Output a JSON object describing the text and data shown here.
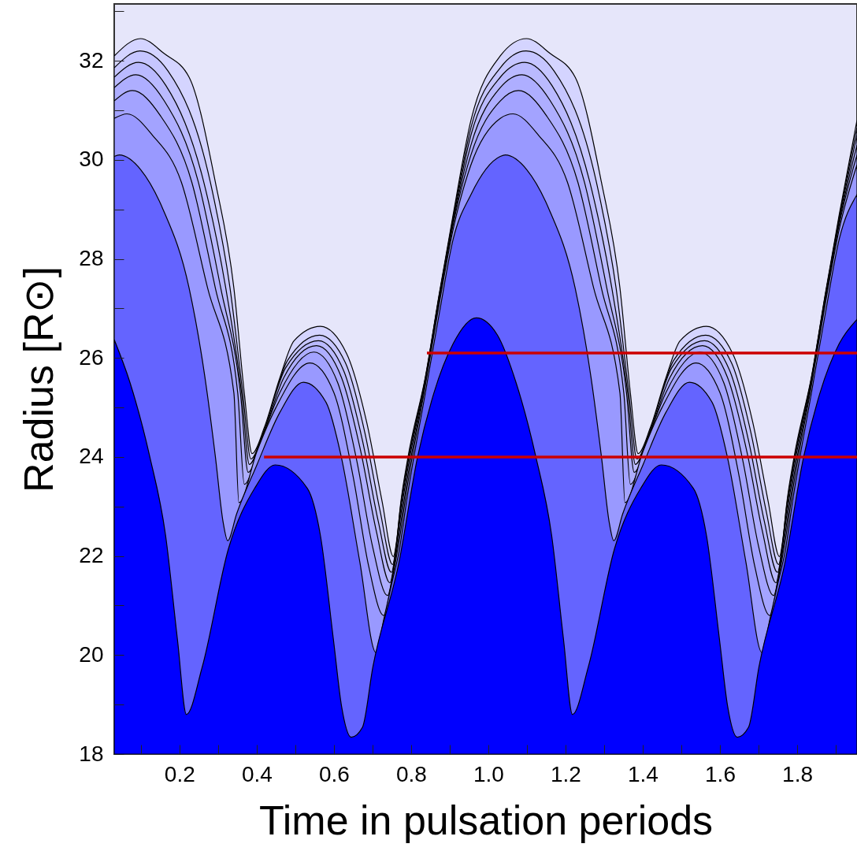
{
  "chart_data": {
    "type": "area",
    "xlabel": "Time in pulsation periods",
    "ylabel": "Radius [R⊙]",
    "xlim": [
      0.031,
      1.955
    ],
    "ylim": [
      18,
      33.15
    ],
    "xticks": [
      {
        "value": 0.1,
        "label": null
      },
      0.2,
      {
        "value": 0.3,
        "label": null
      },
      0.4,
      {
        "value": 0.5,
        "label": null
      },
      0.6,
      {
        "value": 0.7,
        "label": null
      },
      0.8,
      {
        "value": 0.9,
        "label": null
      },
      {
        "value": 1,
        "label": "1.0"
      },
      {
        "value": 1.1,
        "label": null
      },
      1.2,
      {
        "value": 1.3,
        "label": null
      },
      1.4,
      {
        "value": 1.5,
        "label": null
      },
      1.6,
      {
        "value": 1.7,
        "label": null
      },
      1.8,
      {
        "value": 1.9,
        "label": null
      }
    ],
    "yticks": [
      18,
      {
        "value": 19,
        "label": null
      },
      20,
      {
        "value": 21,
        "label": null
      },
      22,
      {
        "value": 23,
        "label": null
      },
      24,
      {
        "value": 25,
        "label": null
      },
      26,
      {
        "value": 27,
        "label": null
      },
      28,
      {
        "value": 29,
        "label": null
      },
      30,
      {
        "value": 31,
        "label": null
      },
      32,
      {
        "value": 33,
        "label": null
      }
    ],
    "series": [
      {
        "color": "#0000ff",
        "x": [
          0.031,
          0.072,
          0.123,
          0.164,
          0.195,
          0.218,
          0.259,
          0.327,
          0.395,
          0.448,
          0.531,
          0.565,
          0.599,
          0.62,
          0.645,
          0.674,
          0.701,
          0.769,
          0.817,
          0.859,
          0.909,
          0.969,
          1.023,
          1.072,
          1.123,
          1.164,
          1.195,
          1.218,
          1.259,
          1.327,
          1.395,
          1.448,
          1.531,
          1.565,
          1.599,
          1.62,
          1.645,
          1.674,
          1.701,
          1.769,
          1.817,
          1.859,
          1.909,
          1.955
        ],
        "values": [
          26.37,
          25.5,
          24.01,
          22.42,
          20.3,
          18.8,
          19.76,
          22.15,
          23.37,
          23.84,
          23.37,
          22.42,
          20.3,
          18.96,
          18.34,
          18.54,
          19.76,
          21.89,
          24.01,
          25.29,
          26.29,
          26.81,
          26.47,
          25.5,
          24.01,
          22.42,
          20.3,
          18.8,
          19.76,
          22.15,
          23.37,
          23.84,
          23.37,
          22.42,
          20.3,
          18.96,
          18.34,
          18.54,
          19.76,
          21.89,
          24.01,
          25.29,
          26.29,
          26.78
        ]
      },
      {
        "color": "#6464ff",
        "x": [
          0.031,
          0.044,
          0.1,
          0.157,
          0.225,
          0.266,
          0.293,
          0.313,
          0.325,
          0.348,
          0.401,
          0.46,
          0.521,
          0.58,
          0.619,
          0.667,
          0.709,
          0.73,
          0.75,
          0.769,
          0.79,
          0.837,
          0.873,
          0.909,
          0.955,
          1.031,
          1.044,
          1.1,
          1.157,
          1.225,
          1.266,
          1.293,
          1.313,
          1.325,
          1.348,
          1.401,
          1.46,
          1.521,
          1.58,
          1.619,
          1.667,
          1.709,
          1.73,
          1.75,
          1.769,
          1.79,
          1.837,
          1.873,
          1.909,
          1.955
        ],
        "values": [
          30.07,
          30.1,
          29.8,
          29.01,
          27.41,
          25.61,
          24.01,
          22.69,
          22.31,
          22.85,
          23.85,
          24.9,
          25.51,
          25.1,
          24.01,
          21.89,
          20.05,
          20.75,
          21.45,
          22.1,
          23.2,
          25.3,
          26.9,
          28.4,
          29.3,
          30.07,
          30.1,
          29.8,
          29.01,
          27.41,
          25.61,
          24.01,
          22.69,
          22.31,
          22.85,
          23.85,
          24.9,
          25.51,
          25.1,
          24.01,
          21.89,
          20.05,
          20.75,
          21.45,
          22.1,
          23.2,
          25.3,
          26.9,
          28.4,
          29.3
        ]
      },
      {
        "color": "#9999ff",
        "x": [
          0.031,
          0.064,
          0.13,
          0.205,
          0.273,
          0.341,
          0.354,
          0.4,
          0.45,
          0.538,
          0.6,
          0.65,
          0.69,
          0.729,
          0.75,
          0.769,
          0.79,
          0.837,
          0.873,
          0.909,
          0.955,
          1.031,
          1.064,
          1.13,
          1.205,
          1.273,
          1.341,
          1.354,
          1.4,
          1.45,
          1.538,
          1.6,
          1.65,
          1.69,
          1.729,
          1.75,
          1.769,
          1.79,
          1.837,
          1.873,
          1.909,
          1.955
        ],
        "values": [
          30.84,
          30.93,
          30.5,
          29.55,
          27.41,
          25.29,
          23.08,
          24.1,
          25.0,
          25.9,
          25.3,
          23.6,
          21.8,
          20.8,
          21.5,
          22.3,
          23.4,
          25.45,
          27.1,
          28.6,
          29.9,
          30.84,
          30.93,
          30.5,
          29.55,
          27.41,
          25.29,
          23.08,
          24.1,
          25.0,
          25.9,
          25.3,
          23.6,
          21.8,
          20.8,
          21.5,
          22.3,
          23.4,
          25.45,
          27.1,
          28.6,
          29.9
        ]
      },
      {
        "color": "#a3a3ff",
        "x": [
          0.031,
          0.078,
          0.15,
          0.232,
          0.293,
          0.351,
          0.368,
          0.41,
          0.46,
          0.548,
          0.61,
          0.66,
          0.7,
          0.739,
          0.755,
          0.769,
          0.79,
          0.837,
          0.873,
          0.909,
          0.955,
          1.031,
          1.078,
          1.15,
          1.232,
          1.293,
          1.351,
          1.368,
          1.41,
          1.46,
          1.548,
          1.61,
          1.66,
          1.7,
          1.739,
          1.755,
          1.769,
          1.79,
          1.837,
          1.873,
          1.909,
          1.955
        ],
        "values": [
          31.19,
          31.4,
          30.9,
          29.55,
          27.41,
          25.29,
          23.45,
          24.3,
          25.3,
          26.12,
          25.5,
          23.9,
          22.2,
          21.2,
          21.75,
          22.45,
          23.55,
          25.5,
          27.15,
          28.7,
          30.1,
          31.19,
          31.4,
          30.9,
          29.55,
          27.41,
          25.29,
          23.45,
          24.3,
          25.3,
          26.12,
          25.5,
          23.9,
          22.2,
          21.2,
          21.75,
          22.45,
          23.55,
          25.5,
          27.15,
          28.7,
          30.1
        ]
      },
      {
        "color": "#aeaeff",
        "x": [
          0.031,
          0.087,
          0.16,
          0.249,
          0.307,
          0.358,
          0.378,
          0.415,
          0.47,
          0.555,
          0.62,
          0.67,
          0.71,
          0.745,
          0.758,
          0.769,
          0.79,
          0.837,
          0.873,
          0.909,
          0.955,
          1.031,
          1.087,
          1.16,
          1.249,
          1.307,
          1.358,
          1.378,
          1.415,
          1.47,
          1.555,
          1.62,
          1.67,
          1.71,
          1.745,
          1.758,
          1.769,
          1.79,
          1.837,
          1.873,
          1.909,
          1.955
        ],
        "values": [
          31.46,
          31.72,
          31.2,
          29.55,
          27.41,
          25.29,
          23.69,
          24.4,
          25.6,
          26.25,
          25.6,
          24.1,
          22.5,
          21.46,
          21.95,
          22.6,
          23.7,
          25.55,
          27.2,
          28.75,
          30.3,
          31.46,
          31.72,
          31.2,
          29.55,
          27.41,
          25.29,
          23.69,
          24.4,
          25.6,
          26.25,
          25.6,
          24.1,
          22.5,
          21.46,
          21.95,
          22.6,
          23.7,
          25.55,
          27.2,
          28.75,
          30.3
        ]
      },
      {
        "color": "#babaff",
        "x": [
          0.031,
          0.094,
          0.165,
          0.263,
          0.32,
          0.361,
          0.381,
          0.415,
          0.475,
          0.56,
          0.625,
          0.675,
          0.715,
          0.749,
          0.76,
          0.769,
          0.79,
          0.837,
          0.873,
          0.909,
          0.955,
          1.031,
          1.094,
          1.165,
          1.263,
          1.32,
          1.361,
          1.381,
          1.415,
          1.475,
          1.56,
          1.625,
          1.675,
          1.715,
          1.749,
          1.76,
          1.769,
          1.79,
          1.837,
          1.873,
          1.909,
          1.955
        ],
        "values": [
          31.67,
          31.97,
          31.5,
          29.55,
          27.41,
          25.29,
          23.85,
          24.45,
          25.8,
          26.35,
          25.75,
          24.3,
          22.7,
          21.67,
          22.1,
          22.7,
          23.8,
          25.58,
          27.25,
          28.8,
          30.5,
          31.67,
          31.97,
          31.5,
          29.55,
          27.41,
          25.29,
          23.85,
          24.45,
          25.8,
          26.35,
          25.75,
          24.3,
          22.7,
          21.67,
          22.1,
          22.7,
          23.8,
          25.58,
          27.25,
          28.8,
          30.5
        ]
      },
      {
        "color": "#c6c6ff",
        "x": [
          0.031,
          0.098,
          0.17,
          0.28,
          0.331,
          0.364,
          0.385,
          0.418,
          0.48,
          0.563,
          0.63,
          0.68,
          0.72,
          0.752,
          0.762,
          0.771,
          0.791,
          0.837,
          0.873,
          0.909,
          0.955,
          1.031,
          1.098,
          1.17,
          1.28,
          1.331,
          1.364,
          1.385,
          1.418,
          1.48,
          1.563,
          1.63,
          1.68,
          1.72,
          1.752,
          1.762,
          1.771,
          1.791,
          1.837,
          1.873,
          1.909,
          1.955
        ],
        "values": [
          31.86,
          32.2,
          31.8,
          29.55,
          27.41,
          25.29,
          23.96,
          24.5,
          25.95,
          26.46,
          25.9,
          24.5,
          22.9,
          21.83,
          22.25,
          22.9,
          23.9,
          25.6,
          27.28,
          28.85,
          30.65,
          31.86,
          32.2,
          31.8,
          29.55,
          27.41,
          25.29,
          23.96,
          24.5,
          25.95,
          26.46,
          25.9,
          24.5,
          22.9,
          21.83,
          22.25,
          22.9,
          23.9,
          25.6,
          27.28,
          28.85,
          30.65
        ]
      },
      {
        "color": "#d4d4ff",
        "x": [
          0.031,
          0.099,
          0.16,
          0.225,
          0.293,
          0.341,
          0.368,
          0.388,
          0.42,
          0.46,
          0.497,
          0.565,
          0.633,
          0.685,
          0.725,
          0.754,
          0.764,
          0.772,
          0.792,
          0.837,
          0.873,
          0.909,
          0.955,
          1.031,
          1.099,
          1.16,
          1.225,
          1.293,
          1.341,
          1.368,
          1.388,
          1.42,
          1.46,
          1.497,
          1.565,
          1.633,
          1.685,
          1.725,
          1.754,
          1.764,
          1.772,
          1.792,
          1.837,
          1.873,
          1.909,
          1.955
        ],
        "values": [
          32.1,
          32.45,
          32.15,
          31.67,
          29.55,
          27.41,
          25.29,
          24.07,
          24.6,
          25.6,
          26.35,
          26.64,
          26.09,
          24.7,
          23.1,
          21.99,
          22.4,
          23.0,
          24.0,
          25.62,
          27.3,
          28.9,
          30.8,
          32.1,
          32.45,
          32.15,
          31.67,
          29.55,
          27.41,
          25.29,
          24.07,
          24.6,
          25.6,
          26.35,
          26.64,
          26.09,
          24.7,
          23.1,
          21.99,
          22.4,
          23.0,
          24.0,
          25.62,
          27.3,
          28.9,
          30.8
        ]
      },
      {
        "type": "line",
        "color": "#cc0000",
        "x": [
          0.419,
          1.955
        ],
        "values": [
          24.0,
          24.0
        ]
      },
      {
        "type": "line",
        "color": "#cc0000",
        "x": [
          0.841,
          1.955
        ],
        "values": [
          26.1,
          26.1
        ]
      }
    ]
  }
}
